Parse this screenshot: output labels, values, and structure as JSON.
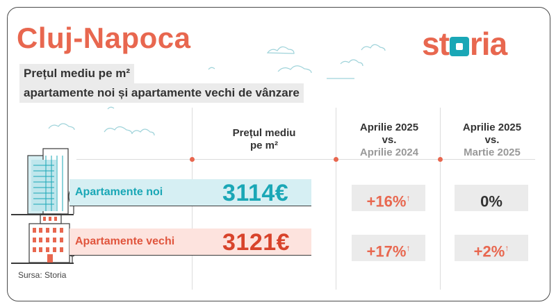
{
  "header": {
    "title": "Cluj-Napoca",
    "logo": {
      "pre": "st",
      "post": "ria"
    },
    "subtitle_line1": "Prețul mediu pe m²",
    "subtitle_line2": "apartamente noi și apartamente vechi de vânzare"
  },
  "columns": {
    "price_line1": "Prețul mediu",
    "price_line2": "pe m²",
    "yoy_line1": "Aprilie 2025",
    "yoy_line2": "vs.",
    "yoy_line3": "Aprilie 2024",
    "mom_line1": "Aprilie 2025",
    "mom_line2": "vs.",
    "mom_line3": "Martie 2025"
  },
  "rows": [
    {
      "label": "Apartamente noi",
      "price": "3114€",
      "yoy": "+16%",
      "yoy_arrow": "↑",
      "mom": "0%",
      "mom_arrow": ""
    },
    {
      "label": "Apartamente vechi",
      "price": "3121€",
      "yoy": "+17%",
      "yoy_arrow": "↑",
      "mom": "+2%",
      "mom_arrow": "↑"
    }
  ],
  "footer": {
    "source": "Sursa: Storia"
  },
  "colors": {
    "accent_red": "#e8674f",
    "accent_teal": "#1aa7b6",
    "pill_grey": "#ebebeb"
  },
  "icons": [
    "building-new-icon",
    "building-old-icon",
    "tree-icon",
    "cloud-icon"
  ]
}
